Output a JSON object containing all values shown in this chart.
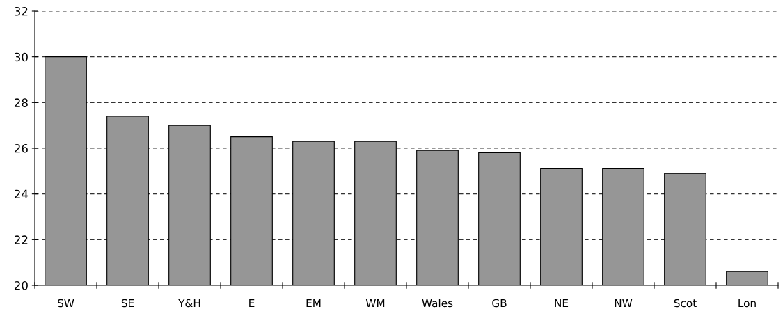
{
  "chart_data": {
    "type": "bar",
    "categories": [
      "SW",
      "SE",
      "Y&H",
      "E",
      "EM",
      "WM",
      "Wales",
      "GB",
      "NE",
      "NW",
      "Scot",
      "Lon"
    ],
    "values": [
      30.0,
      27.4,
      27.0,
      26.5,
      26.3,
      26.3,
      25.9,
      25.8,
      25.1,
      25.1,
      24.9,
      20.6
    ],
    "color": "#969696",
    "ylim": [
      20,
      32
    ],
    "yticks": [
      20,
      22,
      24,
      26,
      28,
      30,
      32
    ],
    "grid": "y"
  }
}
